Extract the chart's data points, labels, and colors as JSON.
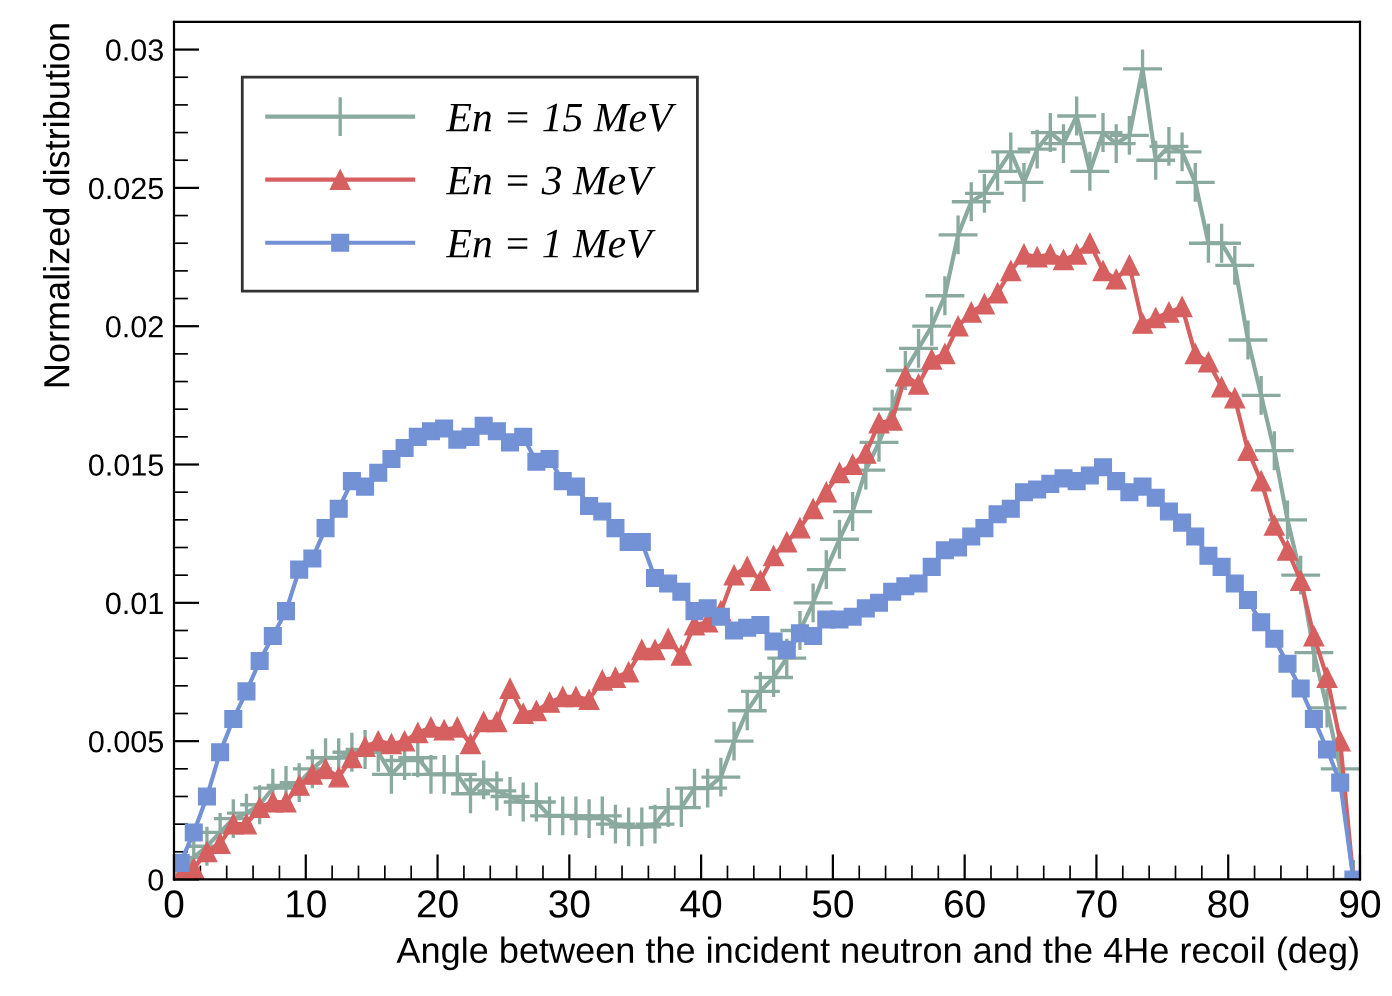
{
  "chart_data": {
    "type": "line",
    "xlabel": "Angle between the incident neutron and the 4He recoil (deg)",
    "ylabel": "Normalized distribution",
    "x": [
      0.5,
      1.5,
      2.5,
      3.5,
      4.5,
      5.5,
      6.5,
      7.5,
      8.5,
      9.5,
      10.5,
      11.5,
      12.5,
      13.5,
      14.5,
      15.5,
      16.5,
      17.5,
      18.5,
      19.5,
      20.5,
      21.5,
      22.5,
      23.5,
      24.5,
      25.5,
      26.5,
      27.5,
      28.5,
      29.5,
      30.5,
      31.5,
      32.5,
      33.5,
      34.5,
      35.5,
      36.5,
      37.5,
      38.5,
      39.5,
      40.5,
      41.5,
      42.5,
      43.5,
      44.5,
      45.5,
      46.5,
      47.5,
      48.5,
      49.5,
      50.5,
      51.5,
      52.5,
      53.5,
      54.5,
      55.5,
      56.5,
      57.5,
      58.5,
      59.5,
      60.5,
      61.5,
      62.5,
      63.5,
      64.5,
      65.5,
      66.5,
      67.5,
      68.5,
      69.5,
      70.5,
      71.5,
      72.5,
      73.5,
      74.5,
      75.5,
      76.5,
      77.5,
      78.5,
      79.5,
      80.5,
      81.5,
      82.5,
      83.5,
      84.5,
      85.5,
      86.5,
      87.5,
      88.5,
      89.5
    ],
    "series": [
      {
        "name": "En = 15 MeV",
        "color": "#8aaa9f",
        "marker": "cross",
        "values": [
          0.0002,
          0.0008,
          0.0012,
          0.0017,
          0.0022,
          0.0024,
          0.0027,
          0.0033,
          0.0034,
          0.0035,
          0.004,
          0.0044,
          0.0044,
          0.0046,
          0.0047,
          0.0046,
          0.0038,
          0.0043,
          0.0044,
          0.0038,
          0.0038,
          0.0038,
          0.0031,
          0.0036,
          0.0032,
          0.003,
          0.0028,
          0.0028,
          0.0023,
          0.0023,
          0.0023,
          0.0022,
          0.0023,
          0.002,
          0.0019,
          0.0019,
          0.002,
          0.0026,
          0.0026,
          0.0033,
          0.0033,
          0.0037,
          0.005,
          0.0061,
          0.0068,
          0.0073,
          0.008,
          0.009,
          0.01,
          0.0112,
          0.0123,
          0.0133,
          0.0148,
          0.0158,
          0.017,
          0.0184,
          0.0192,
          0.02,
          0.0211,
          0.0233,
          0.0245,
          0.0248,
          0.0256,
          0.0263,
          0.0252,
          0.0264,
          0.027,
          0.0266,
          0.0276,
          0.0256,
          0.027,
          0.0266,
          0.0269,
          0.0293,
          0.026,
          0.0265,
          0.0263,
          0.0252,
          0.023,
          0.023,
          0.0222,
          0.0195,
          0.0175,
          0.0155,
          0.013,
          0.011,
          0.0082,
          0.0062,
          0.004,
          0.0
        ]
      },
      {
        "name": "En = 3 MeV",
        "color": "#d65f5f",
        "marker": "triangle",
        "values": [
          0.0001,
          0.0004,
          0.001,
          0.0013,
          0.002,
          0.002,
          0.0026,
          0.0028,
          0.0028,
          0.0034,
          0.0038,
          0.004,
          0.0037,
          0.0044,
          0.0048,
          0.005,
          0.0049,
          0.005,
          0.0053,
          0.0055,
          0.0054,
          0.0055,
          0.0049,
          0.0057,
          0.0057,
          0.0069,
          0.006,
          0.0061,
          0.0064,
          0.0066,
          0.0066,
          0.0065,
          0.0072,
          0.0073,
          0.0075,
          0.0083,
          0.0083,
          0.0087,
          0.0081,
          0.0092,
          0.0093,
          0.0097,
          0.011,
          0.0113,
          0.0108,
          0.0117,
          0.0122,
          0.0127,
          0.0134,
          0.014,
          0.0147,
          0.015,
          0.0154,
          0.0165,
          0.0166,
          0.0182,
          0.0179,
          0.0188,
          0.019,
          0.02,
          0.0205,
          0.0208,
          0.0212,
          0.022,
          0.0226,
          0.0225,
          0.0226,
          0.0224,
          0.0226,
          0.023,
          0.022,
          0.0217,
          0.0222,
          0.0201,
          0.0203,
          0.0205,
          0.0207,
          0.019,
          0.0187,
          0.0178,
          0.0174,
          0.0155,
          0.0144,
          0.0128,
          0.0119,
          0.0108,
          0.0088,
          0.0073,
          0.005,
          0.0
        ]
      },
      {
        "name": "En = 1 MeV",
        "color": "#7391d5",
        "marker": "square",
        "values": [
          0.0006,
          0.0017,
          0.003,
          0.0046,
          0.0058,
          0.0068,
          0.0079,
          0.0088,
          0.0097,
          0.0112,
          0.0116,
          0.0127,
          0.0134,
          0.0144,
          0.0142,
          0.0147,
          0.0152,
          0.0156,
          0.016,
          0.0162,
          0.0163,
          0.0159,
          0.016,
          0.0164,
          0.0162,
          0.0158,
          0.016,
          0.0151,
          0.0152,
          0.0144,
          0.0142,
          0.0135,
          0.0133,
          0.0127,
          0.0122,
          0.0122,
          0.0109,
          0.0107,
          0.0104,
          0.0097,
          0.0098,
          0.0095,
          0.009,
          0.0091,
          0.0092,
          0.0086,
          0.0083,
          0.0089,
          0.0088,
          0.0094,
          0.0094,
          0.0095,
          0.0098,
          0.01,
          0.0104,
          0.0106,
          0.0107,
          0.0113,
          0.0119,
          0.012,
          0.0124,
          0.0127,
          0.0132,
          0.0134,
          0.014,
          0.0141,
          0.0143,
          0.0145,
          0.0144,
          0.0146,
          0.0149,
          0.0144,
          0.014,
          0.0142,
          0.0138,
          0.0133,
          0.0129,
          0.0124,
          0.0117,
          0.0113,
          0.0107,
          0.0101,
          0.0093,
          0.0087,
          0.0078,
          0.0069,
          0.0058,
          0.0047,
          0.0035,
          0.0
        ]
      }
    ],
    "xlim": [
      0,
      90
    ],
    "xticks": [
      0,
      10,
      20,
      30,
      40,
      50,
      60,
      70,
      80,
      90
    ],
    "ylim": [
      0,
      0.031
    ],
    "yticks": [
      0,
      0.005,
      0.01,
      0.015,
      0.02,
      0.025,
      0.03
    ],
    "grid": false,
    "legend": "top left"
  }
}
